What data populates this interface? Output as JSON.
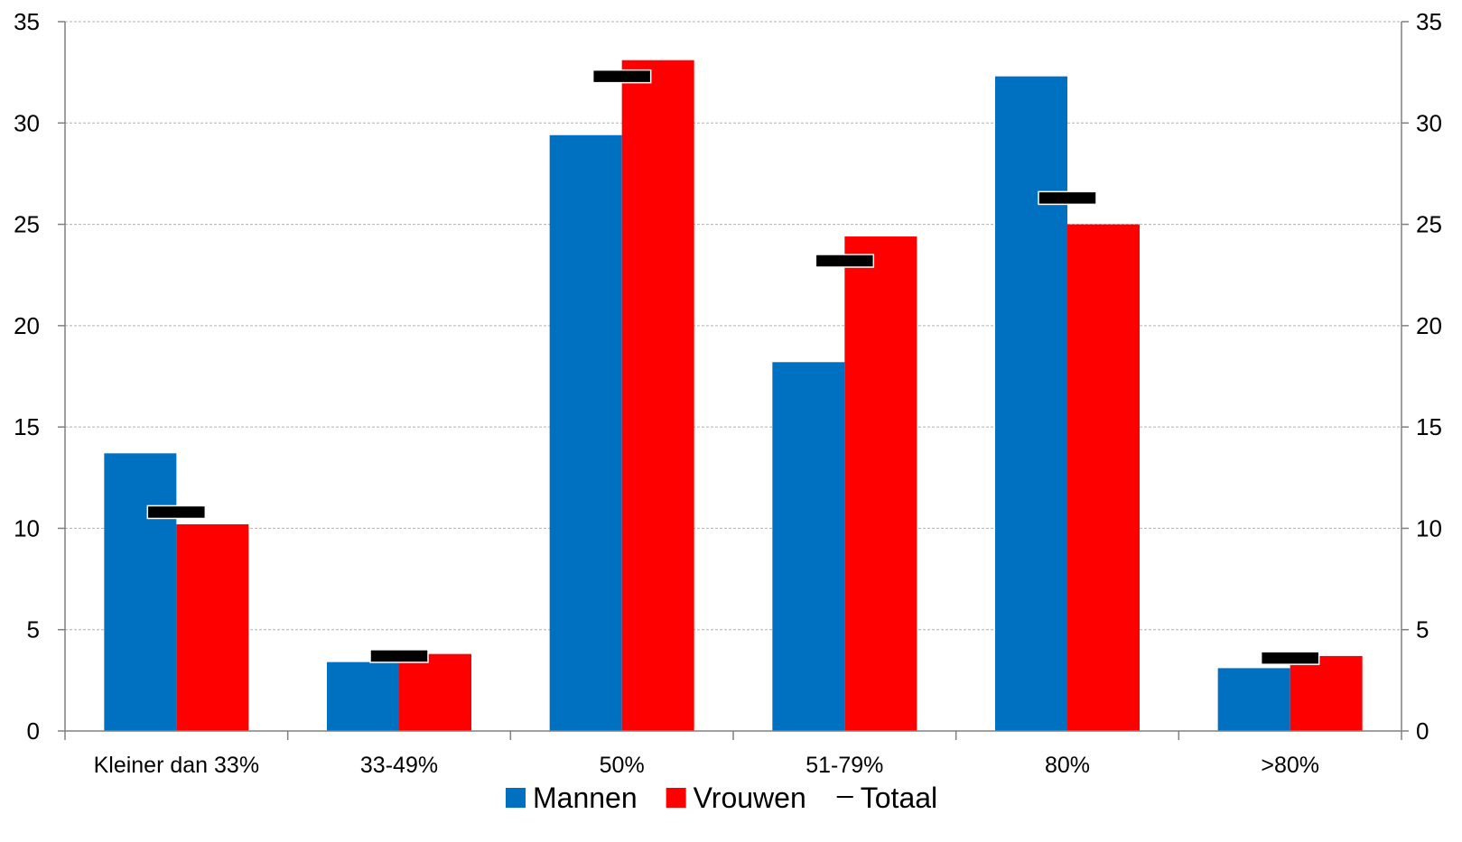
{
  "chart_data": {
    "type": "bar",
    "categories": [
      "Kleiner dan 33%",
      "33-49%",
      "50%",
      "51-79%",
      "80%",
      ">80%"
    ],
    "series": [
      {
        "name": "Mannen",
        "kind": "bar",
        "color": "#0070C0",
        "values": [
          13.7,
          3.4,
          29.4,
          18.2,
          32.3,
          3.1
        ]
      },
      {
        "name": "Vrouwen",
        "kind": "bar",
        "color": "#FF0000",
        "values": [
          10.2,
          3.8,
          33.1,
          24.4,
          25.0,
          3.7
        ]
      },
      {
        "name": "Totaal",
        "kind": "marker",
        "marker": "dash",
        "color": "#000000",
        "values": [
          10.8,
          3.7,
          32.3,
          23.2,
          26.3,
          3.6
        ]
      }
    ],
    "ylim": [
      0,
      35
    ],
    "yticks": [
      0,
      5,
      10,
      15,
      20,
      25,
      30,
      35
    ],
    "secondary_axis": true,
    "grid": true,
    "legend_position": "bottom",
    "title": "",
    "xlabel": "",
    "ylabel": ""
  }
}
